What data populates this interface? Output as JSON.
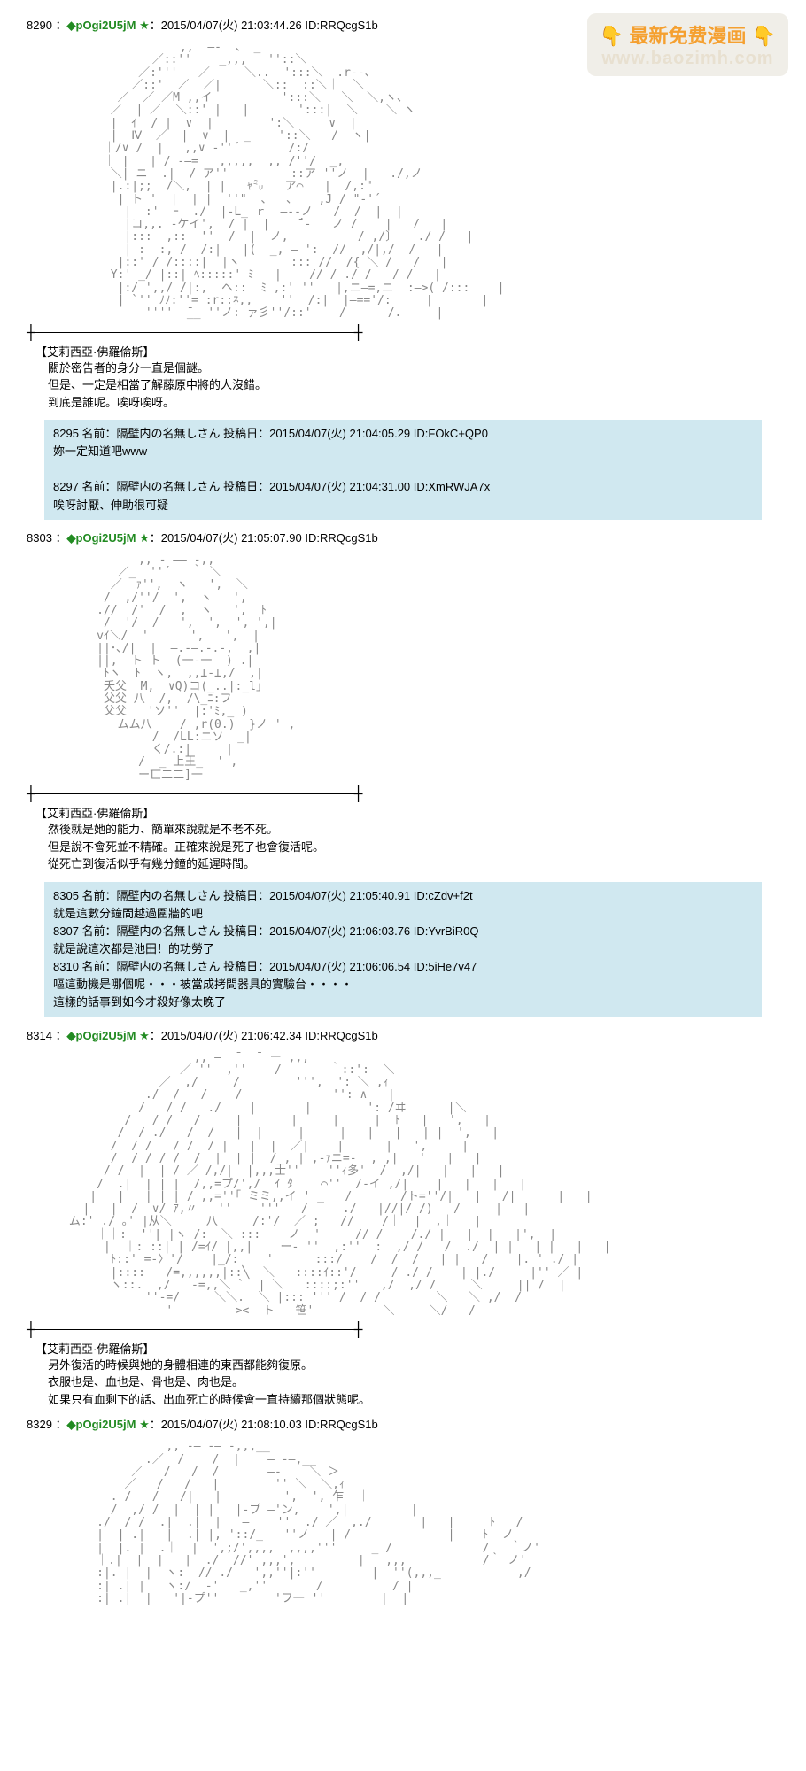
{
  "watermark": {
    "emoji_left": "👇",
    "text1": "最新免费漫画",
    "emoji_right": "👇",
    "text2": "www.baozimh.com",
    "bg_color": "#f0eee8",
    "text1_color": "#f5a030",
    "text2_color": "#e8e0d0"
  },
  "colors": {
    "trip_color": "#228b22",
    "reply_bg": "#d0e8f0",
    "ascii_color": "#888888"
  },
  "posts": [
    {
      "num": "8290",
      "sep": "：",
      "trip_prefix": "◆",
      "trip": "pOgi2U5jM",
      "star": "★",
      "date": "：2015/04/07(火)",
      "time": "21:03:44.26",
      "id": "ID:RRQcgS1b",
      "ascii": "                 ,,  ―-  、 _      \n             ／::''    _,,,   ''::＼         \n           ／:'''   ／     ＼..  ':::＼  .r--、     \n          ／::'  ／  ／|      ＼::  ::＼｜  ＼   \n        ／  ／ ／M ,,イ          ':::＼   ＼  ＼,ヽ、  \n       ／  | ／  ＼::' |   |       ':::|  ＼    ＼ ヽ  \n       |  ｲ  / |  ∨  |        ':＼     ∨  |  \n       |  Ⅳ  ／  |  ∨  |  _    '::＼   /  ヽ|  \n      ｜/∨ /  |   ,,∨ -''´       /:/    \n      ｜ |   | / -―=   ,,,,,  ,, /''/  _,  \n       ＼| ニ  .|  / ア''         ::ア ''ノ  |   ./,ノ  \n       |.:|;;  /＼,  | |   ｬ㍉   ア⌒   |  /,:\"  \n        | ト '  |  | |  ''\"  、  、   ,J / \"-'´  \n         |  :'  ｰ  ./  |-L_ ｒ  ―--ノ   /  /  |  |    \n         |コ,,. -ケイ',  / |  |    ̄´-   ノ /    |   /   |  \n         |:::  ,::  ''  /  |  ノ,          / ,/〕   ./ /   |  \n         | :  :, /  /:|   |(  _, ― ':  //  ,/|,/  /   |  \n        |::' / /::::|  |ヽ    ＿＿::: //  /{ ＼ /   /   |  \n       Y:' _/ |::| ﾍ:::::' ﾐ   |    // / ./ /   / /   |  \n        |:/ ',,/ /|:,  ヘ::  ﾐ ,:' ''   |,ニ―=,ニ  :―>( /:::    |  \n        | `'' ﾉﾉ:''= :r::ﾈ,,    ''  /:|  |―=='/:     |       |  \n            ''''  ̄__ ''ノ:―ァ彡''/::'    /      /.     |",
      "char_name": "【艾莉西亞·佛羅倫斯】",
      "dialogue_lines": [
        "關於密告者的身分一直是個謎。",
        "但是、一定是相當了解藤原中將的人沒錯。",
        "到底是誰呢。唉呀唉呀。"
      ],
      "replies": [
        {
          "num": "8295",
          "name": "名前：隔壁内の名無しさん",
          "post_label": "投稿日：",
          "date": "2015/04/07(火)",
          "time": "21:04:05.29",
          "id": "ID:FOkC+QP0",
          "body": "妳一定知道吧www"
        },
        {
          "num": "8297",
          "name": "名前：隔壁内の名無しさん",
          "post_label": "投稿日：",
          "date": "2015/04/07(火)",
          "time": "21:04:31.00",
          "id": "ID:XmRWJA7x",
          "body": "唉呀討厭、伸助很可疑"
        }
      ]
    },
    {
      "num": "8303",
      "sep": "：",
      "trip_prefix": "◆",
      "trip": "pOgi2U5jM",
      "star": "★",
      "date": "：2015/04/07(火)",
      "time": "21:05:07.90",
      "id": "ID:RRQcgS1b",
      "ascii": "           ,, - ―― -,,   \n        ／_  ''´   ｀ ＼  \n       ／  ｧ'',  ヽ   ',  ＼  \n      /  ,/''/  ',  ヽ   ',  \n     .//  /'  /  ,  ヽ   ',  ﾄ  \n      /  '/  /   ',  ',  ', ',|  \n     vｲ＼/  '      ',   ',  |  \n     ||･､/|  |  ―.-―.-.-,  ,|  \n     ||,  ト ト  (一-一 ―) .|  \n      ﾄヽ  ﾄ  ヽ,  ,,⊥-⊥,/  ,|  \n      夭父  M,  ∨Q)コ(_..|:_l｣  \n      父父 八  /,  /\\_ﾆ:フ  \n      父父   'ソ''  |:'ﾐ,_ )  \n        ムム八    / ,r(0.)  }ノ ' ,  \n             /  /LL:ニソ  _|  \n             く/.:|     |    \n           /  _ 上王_  ' ,  \n           ー匸二二]一",
      "char_name": "【艾莉西亞·佛羅倫斯】",
      "dialogue_lines": [
        "然後就是她的能力、簡單來說就是不老不死。",
        "但是說不會死並不精確。正確來說是死了也會復活呢。",
        "從死亡到復活似乎有幾分鐘的延遲時間。"
      ],
      "replies": [
        {
          "num": "8305",
          "name": "名前：隔壁内の名無しさん",
          "post_label": "投稿日：",
          "date": "2015/04/07(火)",
          "time": "21:05:40.91",
          "id": "ID:cZdv+f2t",
          "body": "就是這數分鐘間越過圍牆的吧"
        },
        {
          "num": "8307",
          "name": "名前：隔壁内の名無しさん",
          "post_label": "投稿日：",
          "date": "2015/04/07(火)",
          "time": "21:06:03.76",
          "id": "ID:YvrBiR0Q",
          "body": "就是說這次都是池田！的功勞了"
        },
        {
          "num": "8310",
          "name": "名前：隔壁内の名無しさん",
          "post_label": "投稿日：",
          "date": "2015/04/07(火)",
          "time": "21:06:06.54",
          "id": "ID:5iHe7v47",
          "body": "嘔這動機是哪個呢・・・被當成拷問器具的實驗台・・・・\n這樣的話事到如今才殺好像太晚了"
        }
      ]
    },
    {
      "num": "8314",
      "sep": "：",
      "trip_prefix": "◆",
      "trip": "pOgi2U5jM",
      "star": "★",
      "date": "：2015/04/07(火)",
      "time": "21:06:42.34",
      "id": "ID:RRQcgS1b",
      "ascii": "                   ,, ―  ̄   ̄  ー ,,,       \n                 ／ ''  ,''    /       ｀::':  ＼        \n              ／  ,/     /        ''',  ': ＼ ,ｨ      \n            ./  /   /    /             '': ∧   |  \n           /   / /   ./    |       |        ': /ヰ      |＼  \n         /   / /   /     |       |     |     |  ﾄ   |   ',   |  \n        /  / ./   /  /   |  |     |     |   |   |   | |  ',   |  \n       /  / /   / /  / |   |  |  ／|    |      |   ',     |  \n       /  / / / /  /  |  | |  /_, | ,-ｧニ=-  , ,|   '   |   |  \n      / /  |  | / ／ /,/|  |,,,士''    ''ｨ多'  /  ,/|   |   |   |  \n     /  .|  | | |  /,,=プ/',/  ｲ ﾀ    ⌒''  /-イ ,/|    |   |   |   |  \n    |   |   | | | / ,,=''｢ ミミ,,イ ' _   /       /ト=''/|   |   /|      |   |  \n   |   |  /  ∨/ ｱ,〃   ''    '''   /     ./   |//|/ /)   /     |   |  \n ム:' ./ ｡' |从＼     八     /:'/  ／ ;   //    /｜  |  ,｜   |  \n     ｜｜:  ''| |ヽ /:  ＼ :::    ノ  '     // /    /./ |   |  |   |',  |  \n      |  ｜: ::| | /=ｲ/ |,,|    ー- ''  ,:''  :  ,/ /   /  ./  | |   | |   |   |  \n       ﾄ::' =-〉'/    |_/:    '      :::/    /  /  /   | |   /    |. ' ./ |  \n       |::::   /=,,,,,,|::╲  ＼   ::::ｲ::'/     / ./ /    | |./     |'' ／ |  \n       ヽ::.  ,/   -=,,＼ `  | ＼   ::::;:''   ,/  ,/ /     ＼     || /  |  \n            ''-=/     ＼＼.  ＼ |::: ''' /  / /        ＼   ＼ ,/  /\n               '         ><  ト   笹'          ＼     ＼/   /",
      "char_name": "【艾莉西亞·佛羅倫斯】",
      "dialogue_lines": [
        "另外復活的時候與她的身體相連的東西都能夠復原。",
        "衣服也是、血也是、骨也是、肉也是。",
        "如果只有血剩下的話、出血死亡的時候會一直持續那個狀態呢。"
      ],
      "replies": []
    },
    {
      "num": "8329",
      "sep": "：",
      "trip_prefix": "◆",
      "trip": "pOgi2U5jM",
      "star": "★",
      "date": "：2015/04/07(火)",
      "time": "21:08:10.03",
      "id": "ID:RRQcgS1b",
      "ascii": "               ,, -― -― -,,,__        \n            .／  /    /  |    ― -―,__         \n          ／   /   /  /       ―-    ＼ ＞       \n         ／   /   /   |        '' ＼  ＼,ｨ            \n       . /   /   /|   |         ',  ', 乍  ｜       \n       /  ,/ /  |  | |   |-ブ ―'ン,    ',|         |     \n     ./  / /  .|  .|  |   ―    ''  ./ ／  ,./       |   |     ﾄ   /  \n     |  | .|   |  .| |, '::/_   ''ノ   | /              |    ﾄ  ノ  \n     |  |. |  .｜  |  ',;/',,,,  ,,,,'''     _ /             /   ｀ノ'  \n     ｜.|  |  |   |  ./  //' ,,,',         |   ,,,           /｀ ノ'  \n     :|. |  |  ヽ:  // ./   ',,''|:''        |  ''(,,,_           ,/  \n     :| .| |   ヽ:/  -'   _,''       /          / |  \n     :| .|  |   '|-プ''        'フ一 ''        |  |",
      "char_name": "",
      "dialogue_lines": [],
      "replies": []
    }
  ]
}
